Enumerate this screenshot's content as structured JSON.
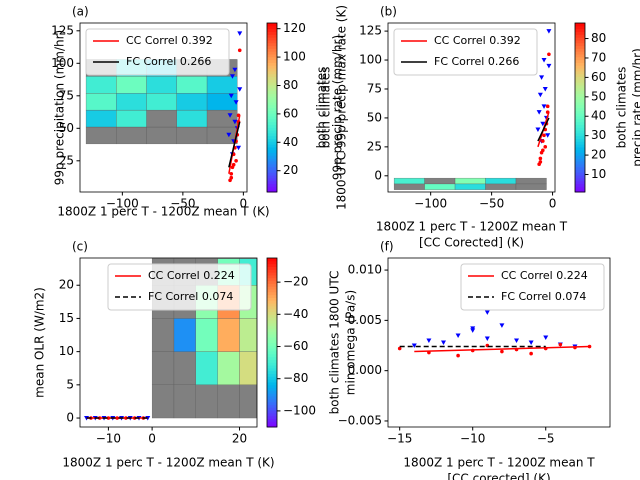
{
  "chart_data": [
    {
      "type": "scatter",
      "panel": "(a)",
      "xlabel": [
        "1800Z 1 perc T - 1200Z mean T (K)"
      ],
      "ylabel": [
        "99p precipitation (mm/hr)"
      ],
      "xlim": [
        -135,
        3
      ],
      "ylim": [
        1,
        131
      ],
      "xticks": [
        {
          "value": -100,
          "label": "−100"
        },
        {
          "value": -50,
          "label": "−50"
        },
        0
      ],
      "yticks": [
        25,
        50,
        75,
        100,
        125
      ],
      "legend": "upper left",
      "heatmap": {
        "colormap": "rainbow",
        "missing_color": "#808080",
        "xbins": [
          -130,
          -105,
          -80,
          -55,
          -30,
          -5
        ],
        "ybins": [
          38,
          51,
          64,
          77,
          90,
          103
        ],
        "values": [
          [
            null,
            null,
            null,
            null,
            null
          ],
          [
            40,
            50,
            null,
            45,
            null
          ],
          [
            55,
            45,
            50,
            40,
            35
          ],
          [
            50,
            60,
            45,
            55,
            40
          ],
          [
            null,
            45,
            40,
            null,
            null
          ]
        ]
      },
      "colorbar": {
        "label": [
          "both climates",
          "99p precip rate (mm/hr)"
        ],
        "lim": [
          5,
          124
        ],
        "ticks": [
          20,
          40,
          60,
          80,
          100,
          120
        ]
      },
      "series": [
        {
          "name": "CC Correl 0.392",
          "color": "#ff0000",
          "style": "solid",
          "x": [
            -12,
            -3
          ],
          "values": [
            15,
            60
          ]
        },
        {
          "name": "FC Correl 0.266",
          "color": "#000000",
          "style": "solid",
          "x": [
            -12,
            -3
          ],
          "values": [
            20,
            55
          ]
        }
      ],
      "points": [
        {
          "color": "#0000ff",
          "marker": "triangle",
          "x": [
            -12,
            -11,
            -10,
            -9,
            -8,
            -7,
            -6,
            -5,
            -4,
            -3,
            -9,
            -7,
            -3
          ],
          "values": [
            45,
            60,
            75,
            90,
            40,
            55,
            70,
            50,
            35,
            80,
            30,
            95,
            123
          ]
        },
        {
          "color": "#ff0000",
          "marker": "circle",
          "x": [
            -11,
            -10,
            -9,
            -8,
            -7,
            -6,
            -5,
            -4,
            -10,
            -8,
            -6,
            -4,
            -3
          ],
          "values": [
            10,
            15,
            20,
            30,
            35,
            25,
            45,
            55,
            12,
            22,
            40,
            60,
            110
          ]
        }
      ]
    },
    {
      "type": "scatter",
      "panel": "(b)",
      "xlabel": [
        "1800Z 1 perc T - 1200Z mean T",
        "[CC Corected] (K)"
      ],
      "ylabel": [
        "both climates",
        "1800 UTC 99p precip max rate (K)"
      ],
      "xlim": [
        -135,
        2
      ],
      "ylim": [
        -14,
        132
      ],
      "xticks": [
        {
          "value": -100,
          "label": "−100"
        },
        {
          "value": -50,
          "label": "−50"
        },
        0
      ],
      "yticks": [
        0,
        25,
        50,
        75,
        100,
        125
      ],
      "legend": "upper left",
      "heatmap": {
        "colormap": "rainbow",
        "missing_color": "#808080",
        "xbins": [
          -130,
          -105,
          -80,
          -55,
          -30,
          -5
        ],
        "ybins": [
          -12,
          -7,
          -2
        ],
        "values": [
          [
            null,
            40,
            30,
            null,
            null
          ],
          [
            35,
            null,
            45,
            30,
            null
          ]
        ]
      },
      "colorbar": {
        "label": [
          "both climates",
          "precip rate (mm/hr)"
        ],
        "lim": [
          1,
          88
        ],
        "ticks": [
          10,
          20,
          30,
          40,
          50,
          60,
          70,
          80
        ]
      },
      "series": [
        {
          "name": "CC Correl 0.392",
          "color": "#ff0000",
          "style": "solid",
          "x": [
            -12,
            -3
          ],
          "values": [
            25,
            55
          ]
        },
        {
          "name": "FC Correl 0.266",
          "color": "#000000",
          "style": "solid",
          "x": [
            -12,
            -3
          ],
          "values": [
            30,
            50
          ]
        }
      ],
      "points": [
        {
          "color": "#0000ff",
          "marker": "triangle",
          "x": [
            -12,
            -11,
            -10,
            -9,
            -8,
            -7,
            -6,
            -5,
            -4,
            -3,
            -9,
            -7,
            -3
          ],
          "values": [
            40,
            55,
            70,
            85,
            45,
            60,
            75,
            50,
            35,
            95,
            30,
            100,
            125
          ]
        },
        {
          "color": "#ff0000",
          "marker": "circle",
          "x": [
            -11,
            -10,
            -9,
            -8,
            -7,
            -6,
            -5,
            -4,
            -10,
            -8,
            -6,
            -4,
            -3
          ],
          "values": [
            10,
            15,
            20,
            30,
            35,
            25,
            45,
            55,
            12,
            22,
            40,
            60,
            105
          ]
        }
      ]
    },
    {
      "type": "scatter",
      "panel": "(c)",
      "xlabel": [
        "1800Z 1 perc T - 1200Z mean T (K)"
      ],
      "ylabel": [
        "mean OLR (W/m2)"
      ],
      "xlim": [
        -16.5,
        24
      ],
      "ylim": [
        -1.35,
        24.1
      ],
      "xticks": [
        {
          "value": -10,
          "label": "−10"
        },
        0,
        20
      ],
      "yticks": [
        0,
        5,
        10,
        15,
        20
      ],
      "legend": "upper right",
      "heatmap": {
        "colormap": "rainbow",
        "missing_color": "#808080",
        "xbins": [
          0,
          5,
          10,
          15,
          20,
          24
        ],
        "ybins": [
          0,
          5,
          10,
          15,
          20,
          24
        ],
        "values": [
          [
            null,
            null,
            null,
            null,
            null
          ],
          [
            null,
            null,
            -70,
            -50,
            -40
          ],
          [
            null,
            -90,
            -60,
            -30,
            -45
          ],
          [
            null,
            null,
            -55,
            -25,
            -50
          ],
          [
            null,
            null,
            null,
            -60,
            -70
          ]
        ]
      },
      "colorbar": {
        "lim": [
          -110,
          -5
        ],
        "ticks": [
          {
            "value": -100,
            "label": "−100"
          },
          {
            "value": -80,
            "label": "−80"
          },
          {
            "value": -60,
            "label": "−60"
          },
          {
            "value": -40,
            "label": "−40"
          },
          {
            "value": -20,
            "label": "−20"
          }
        ]
      },
      "series": [
        {
          "name": "CC Correl 0.224",
          "color": "#ff0000",
          "style": "solid",
          "x": [
            -15,
            -1
          ],
          "values": [
            0,
            0
          ]
        },
        {
          "name": "FC Correl 0.074",
          "color": "#000000",
          "style": "dashed",
          "x": [
            -15,
            -1
          ],
          "values": [
            0,
            0
          ]
        }
      ],
      "points": [
        {
          "color": "#0000ff",
          "marker": "triangle",
          "x": [
            -15,
            -13,
            -11,
            -9,
            -7,
            -5,
            -3,
            -1
          ],
          "values": [
            0,
            0,
            0,
            0,
            0,
            0,
            0,
            0
          ]
        },
        {
          "color": "#ff0000",
          "marker": "circle",
          "x": [
            -14,
            -12,
            -10,
            -8,
            -6,
            -4,
            -2
          ],
          "values": [
            0,
            0,
            0,
            0,
            0,
            0,
            0
          ]
        }
      ]
    },
    {
      "type": "scatter",
      "panel": "(f)",
      "xlabel": [
        "1800Z 1 perc T - 1200Z mean T",
        "[CC corected] (K)"
      ],
      "ylabel": [
        "both climates 1800 UTC",
        "min omega (Pa/s)"
      ],
      "xlim": [
        -15.8,
        -0.6
      ],
      "ylim": [
        -0.0056,
        0.0112
      ],
      "xticks": [
        {
          "value": -15,
          "label": "−15"
        },
        {
          "value": -10,
          "label": "−10"
        },
        {
          "value": -5,
          "label": "−5"
        }
      ],
      "yticks": [
        {
          "value": -0.005,
          "label": "−0.005"
        },
        {
          "value": 0,
          "label": "0.000"
        },
        {
          "value": 0.005,
          "label": "0.005"
        },
        {
          "value": 0.01,
          "label": "0.010"
        }
      ],
      "legend": "upper right",
      "series": [
        {
          "name": "CC Correl 0.224",
          "color": "#ff0000",
          "style": "solid",
          "x": [
            -14,
            -2
          ],
          "values": [
            0.0019,
            0.0024
          ]
        },
        {
          "name": "FC Correl 0.074",
          "color": "#000000",
          "style": "dashed",
          "x": [
            -15,
            -5
          ],
          "values": [
            0.0024,
            0.0024
          ]
        }
      ],
      "points": [
        {
          "color": "#0000ff",
          "marker": "triangle",
          "x": [
            -14,
            -13,
            -12,
            -11,
            -10,
            -9,
            -8,
            -7,
            -6,
            -5,
            -4,
            -3,
            -9,
            -10
          ],
          "values": [
            0.0025,
            0.003,
            0.0028,
            0.0035,
            0.004,
            0.0032,
            0.0045,
            0.003,
            0.0028,
            0.0033,
            0.0026,
            0.0024,
            0.0058,
            0.0042
          ]
        },
        {
          "color": "#ff0000",
          "marker": "circle",
          "x": [
            -15,
            -13,
            -11,
            -10,
            -9,
            -8,
            -7,
            -6,
            -5,
            -4,
            -3,
            -2
          ],
          "values": [
            0.0022,
            0.0018,
            0.0015,
            0.002,
            0.0025,
            0.0019,
            0.0021,
            0.0017,
            0.0022,
            0.0026,
            0.0023,
            0.0024
          ]
        }
      ]
    }
  ]
}
